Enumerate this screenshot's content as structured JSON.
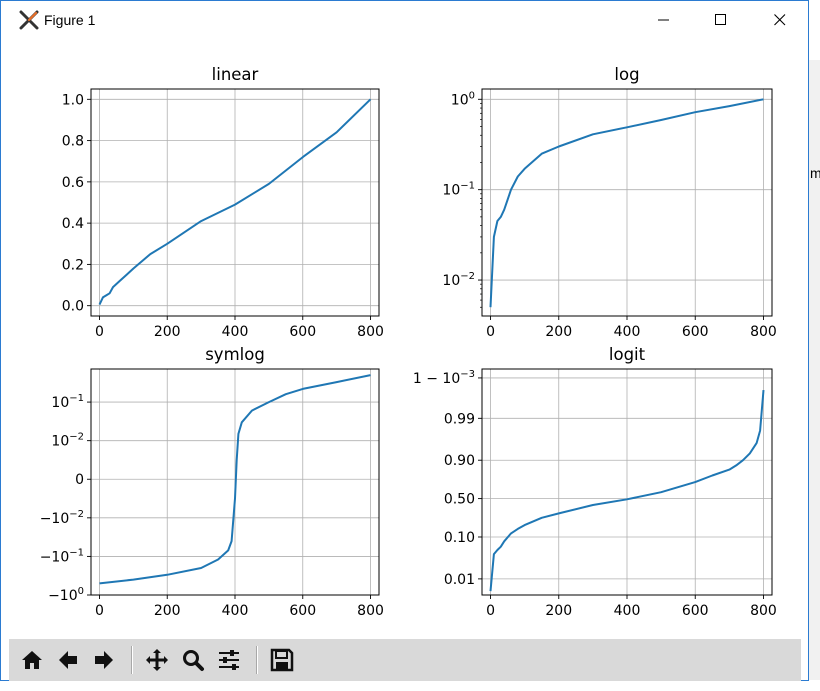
{
  "window": {
    "title": "Figure 1",
    "icon": "matplotlib-x-icon"
  },
  "background_app": {
    "clipped_text": "m"
  },
  "chart_data": [
    {
      "type": "line",
      "title": "linear",
      "yscale": "linear",
      "grid": true,
      "xlim": [
        -25,
        825
      ],
      "ylim": [
        -0.05,
        1.05
      ],
      "xticks": [
        0,
        200,
        400,
        600,
        800
      ],
      "xtick_labels": [
        "0",
        "200",
        "400",
        "600",
        "800"
      ],
      "yticks": [
        0.0,
        0.2,
        0.4,
        0.6,
        0.8,
        1.0
      ],
      "ytick_labels": [
        "0.0",
        "0.2",
        "0.4",
        "0.6",
        "0.8",
        "1.0"
      ],
      "color": "#1f77b4",
      "x": [
        0,
        10,
        20,
        30,
        40,
        60,
        80,
        100,
        150,
        200,
        300,
        400,
        500,
        600,
        700,
        800
      ],
      "y": [
        0.005,
        0.04,
        0.05,
        0.06,
        0.09,
        0.12,
        0.15,
        0.18,
        0.25,
        0.3,
        0.41,
        0.49,
        0.59,
        0.72,
        0.84,
        1.0
      ]
    },
    {
      "type": "line",
      "title": "log",
      "yscale": "log",
      "grid": true,
      "xlim": [
        -25,
        825
      ],
      "ylim": [
        0.004,
        1.3
      ],
      "xticks": [
        0,
        200,
        400,
        600,
        800
      ],
      "xtick_labels": [
        "0",
        "200",
        "400",
        "600",
        "800"
      ],
      "yticks": [
        0.01,
        0.1,
        1
      ],
      "ytick_labels": [
        [
          "10",
          "−2"
        ],
        [
          "10",
          "−1"
        ],
        [
          "10",
          "0"
        ]
      ],
      "color": "#1f77b4",
      "x": [
        0,
        10,
        20,
        30,
        40,
        60,
        80,
        100,
        150,
        200,
        300,
        400,
        500,
        600,
        700,
        800
      ],
      "y": [
        0.005,
        0.03,
        0.045,
        0.05,
        0.06,
        0.1,
        0.14,
        0.17,
        0.25,
        0.3,
        0.41,
        0.49,
        0.59,
        0.72,
        0.84,
        1.0
      ]
    },
    {
      "type": "line",
      "title": "symlog",
      "yscale": "symlog",
      "linthresh": 0.01,
      "grid": true,
      "xlim": [
        -25,
        825
      ],
      "ylim": [
        -1.0,
        0.72
      ],
      "xticks": [
        0,
        200,
        400,
        600,
        800
      ],
      "xtick_labels": [
        "0",
        "200",
        "400",
        "600",
        "800"
      ],
      "yticks": [
        -1.0,
        -0.1,
        -0.01,
        0,
        0.01,
        0.1
      ],
      "ytick_labels": [
        [
          "−10",
          "0"
        ],
        [
          "−10",
          "−1"
        ],
        [
          "−10",
          "−2"
        ],
        [
          "0",
          ""
        ],
        [
          "10",
          "−2"
        ],
        [
          "10",
          "−1"
        ]
      ],
      "color": "#1f77b4",
      "x": [
        0,
        100,
        200,
        300,
        350,
        380,
        390,
        400,
        405,
        410,
        420,
        450,
        500,
        550,
        600,
        700,
        800
      ],
      "y": [
        -0.5,
        -0.4,
        -0.3,
        -0.2,
        -0.12,
        -0.07,
        -0.04,
        -0.005,
        0.005,
        0.015,
        0.03,
        0.06,
        0.1,
        0.16,
        0.22,
        0.33,
        0.5
      ]
    },
    {
      "type": "line",
      "title": "logit",
      "yscale": "logit",
      "grid": true,
      "xlim": [
        -25,
        825
      ],
      "ylim": [
        0.004,
        0.9994
      ],
      "xticks": [
        0,
        200,
        400,
        600,
        800
      ],
      "xtick_labels": [
        "0",
        "200",
        "400",
        "600",
        "800"
      ],
      "yticks": [
        0.01,
        0.1,
        0.5,
        0.9,
        0.99,
        0.999
      ],
      "ytick_labels": [
        [
          "0.01",
          ""
        ],
        [
          "0.10",
          ""
        ],
        [
          "0.50",
          ""
        ],
        [
          "0.90",
          ""
        ],
        [
          "0.99",
          ""
        ],
        [
          "1 − 10",
          "−3"
        ]
      ],
      "color": "#1f77b4",
      "x": [
        0,
        10,
        20,
        30,
        40,
        60,
        80,
        100,
        150,
        200,
        300,
        400,
        500,
        600,
        650,
        700,
        720,
        740,
        760,
        780,
        790,
        800
      ],
      "y": [
        0.005,
        0.04,
        0.05,
        0.06,
        0.08,
        0.12,
        0.15,
        0.18,
        0.25,
        0.3,
        0.41,
        0.49,
        0.59,
        0.72,
        0.79,
        0.84,
        0.87,
        0.9,
        0.93,
        0.96,
        0.98,
        0.998
      ]
    }
  ],
  "toolbar": {
    "buttons": [
      {
        "name": "home-button",
        "icon": "home-icon"
      },
      {
        "name": "back-button",
        "icon": "arrow-left-icon"
      },
      {
        "name": "forward-button",
        "icon": "arrow-right-icon"
      },
      {
        "name": "pan-button",
        "icon": "move-icon"
      },
      {
        "name": "zoom-button",
        "icon": "magnifier-icon"
      },
      {
        "name": "configure-subplots-button",
        "icon": "sliders-icon"
      },
      {
        "name": "save-button",
        "icon": "floppy-disk-icon"
      }
    ]
  }
}
